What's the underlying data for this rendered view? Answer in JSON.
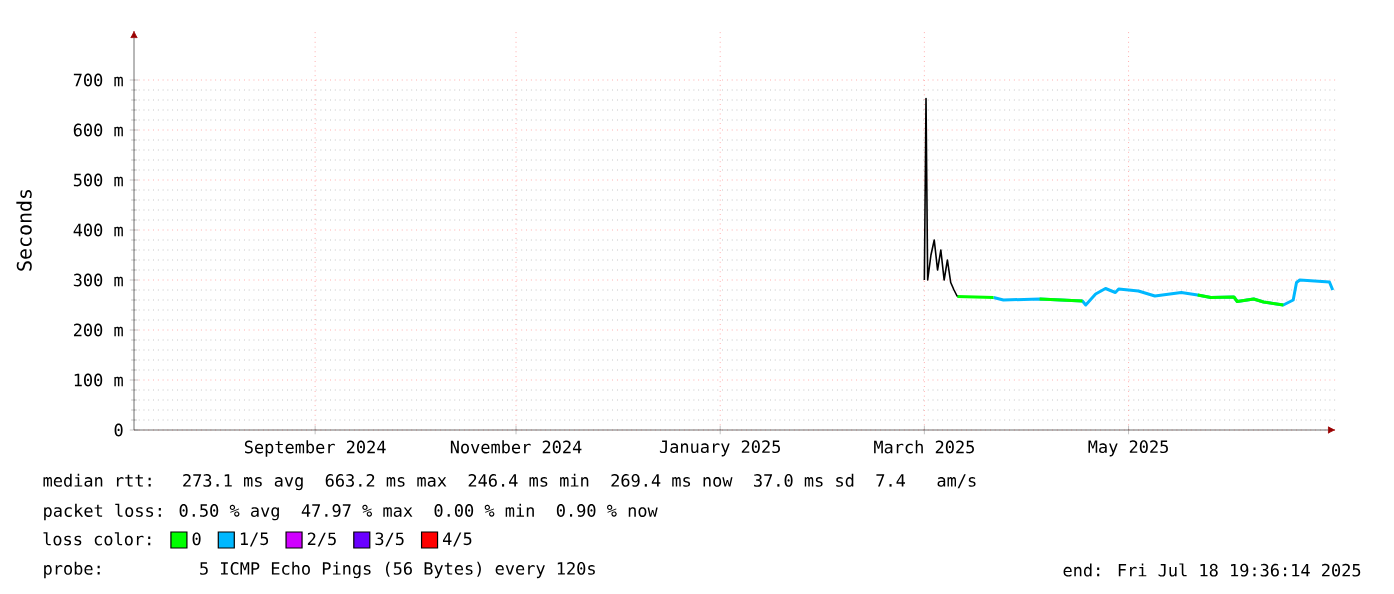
{
  "chart_data": {
    "type": "line",
    "ylabel": "Seconds",
    "legend_title": "loss color:",
    "legend": "bottom",
    "grid": true,
    "ylim": [
      0,
      800
    ],
    "yticks": [
      {
        "value": 0,
        "label": "0"
      },
      {
        "value": 100,
        "label": "100 m"
      },
      {
        "value": 200,
        "label": "200 m"
      },
      {
        "value": 300,
        "label": "300 m"
      },
      {
        "value": 400,
        "label": "400 m"
      },
      {
        "value": 500,
        "label": "500 m"
      },
      {
        "value": 600,
        "label": "600 m"
      },
      {
        "value": 700,
        "label": "700 m"
      }
    ],
    "xlim": [
      "2024-07-18",
      "2025-07-18"
    ],
    "xticks": [
      {
        "value": "2024-09-11",
        "label": "September 2024"
      },
      {
        "value": "2024-11-11",
        "label": "November 2024"
      },
      {
        "value": "2025-01-12",
        "label": "January 2025"
      },
      {
        "value": "2025-03-15",
        "label": "March 2025"
      },
      {
        "value": "2025-05-16",
        "label": "May 2025"
      }
    ],
    "x": [
      "2025-03-25",
      "2025-04-05",
      "2025-04-08",
      "2025-04-19",
      "2025-05-02",
      "2025-05-03",
      "2025-05-06",
      "2025-05-09",
      "2025-05-12",
      "2025-05-13",
      "2025-05-19",
      "2025-05-24",
      "2025-06-01",
      "2025-06-06",
      "2025-06-10",
      "2025-06-17",
      "2025-06-18",
      "2025-06-23",
      "2025-06-26",
      "2025-07-02",
      "2025-07-05",
      "2025-07-06",
      "2025-07-07",
      "2025-07-16",
      "2025-07-17"
    ],
    "series": [
      {
        "color": "#000000",
        "x": [
          "2025-03-15",
          "2025-03-15T12:00",
          "2025-03-16",
          "2025-03-17",
          "2025-03-18",
          "2025-03-19",
          "2025-03-20",
          "2025-03-21",
          "2025-03-22",
          "2025-03-23",
          "2025-03-24",
          "2025-03-25"
        ],
        "values": [
          300,
          663,
          300,
          350,
          380,
          320,
          360,
          300,
          340,
          295,
          280,
          267
        ]
      },
      {
        "name": "0",
        "color": "#00ff00",
        "values": [
          267,
          265,
          null,
          262,
          258,
          null,
          null,
          null,
          null,
          null,
          null,
          null,
          null,
          270,
          265,
          266,
          257,
          262,
          256,
          250,
          null,
          null,
          null,
          null,
          null
        ]
      },
      {
        "name": "1/5",
        "color": "#00b8ff",
        "values": [
          null,
          265,
          260,
          262,
          258,
          250,
          272,
          283,
          275,
          282,
          278,
          268,
          275,
          270,
          265,
          266,
          257,
          262,
          256,
          250,
          260,
          295,
          300,
          296,
          280
        ]
      },
      {
        "name": "2/5",
        "color": "#d000ff",
        "values": [
          null,
          null,
          null,
          null,
          null,
          null,
          null,
          null,
          null,
          null,
          null,
          null,
          null,
          null,
          null,
          null,
          null,
          null,
          null,
          null,
          null,
          null,
          null,
          null,
          null
        ]
      },
      {
        "name": "3/5",
        "color": "#6a00ff",
        "values": [
          null,
          null,
          null,
          null,
          null,
          null,
          null,
          null,
          null,
          null,
          null,
          null,
          null,
          null,
          null,
          null,
          null,
          null,
          null,
          null,
          null,
          null,
          null,
          null,
          null
        ]
      },
      {
        "name": "4/5",
        "color": "#ff0000",
        "values": [
          null,
          null,
          null,
          null,
          null,
          null,
          null,
          null,
          null,
          null,
          null,
          null,
          null,
          null,
          null,
          null,
          null,
          null,
          null,
          null,
          null,
          null,
          null,
          null,
          null
        ]
      }
    ],
    "annotations": [
      "median rtt:  273.1 ms avg  663.2 ms max  246.4 ms min  269.4 ms now  37.0 ms sd  7.4   am/s",
      "packet loss: 0.50 % avg  47.97 % max  0.00 % min  0.90 % now",
      "probe:       5 ICMP Echo Pings (56 Bytes) every 120s",
      "end: Fri Jul 18 19:36:14 2025"
    ]
  }
}
